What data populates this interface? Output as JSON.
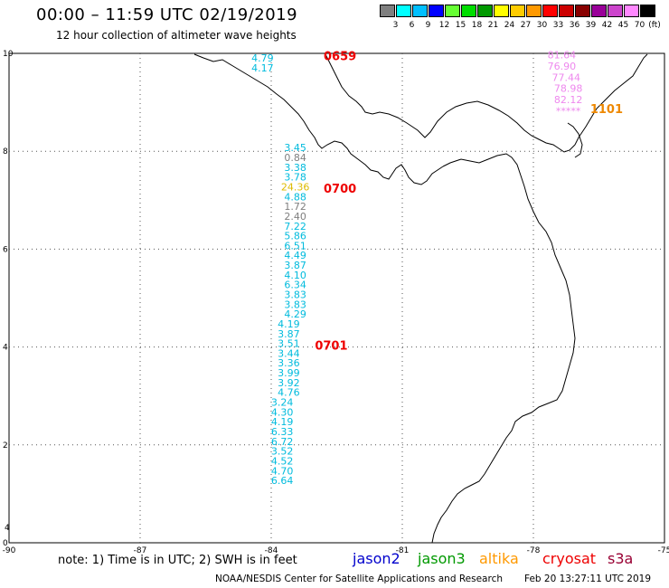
{
  "header": {
    "title": "00:00 – 11:59 UTC 02/19/2019",
    "subtitle": "12 hour collection of altimeter wave heights"
  },
  "scale": {
    "unit": "(ft)",
    "swatches": [
      {
        "color": "#7f7f7f",
        "label": "3"
      },
      {
        "color": "#00ffff",
        "label": "6"
      },
      {
        "color": "#00bfff",
        "label": "9"
      },
      {
        "color": "#0000ff",
        "label": "12"
      },
      {
        "color": "#66ff33",
        "label": "15"
      },
      {
        "color": "#00dd00",
        "label": "18"
      },
      {
        "color": "#009900",
        "label": "21"
      },
      {
        "color": "#ffff00",
        "label": "24"
      },
      {
        "color": "#ffcc00",
        "label": "27"
      },
      {
        "color": "#ff9900",
        "label": "30"
      },
      {
        "color": "#ff0000",
        "label": "33"
      },
      {
        "color": "#cc0000",
        "label": "36"
      },
      {
        "color": "#880000",
        "label": "39"
      },
      {
        "color": "#990099",
        "label": "42"
      },
      {
        "color": "#cc44cc",
        "label": "45"
      },
      {
        "color": "#ff88ff",
        "label": "70"
      },
      {
        "color": "#000000",
        "label": ""
      }
    ]
  },
  "map": {
    "lon_range": [
      -90,
      -75
    ],
    "lat_range": [
      0,
      10
    ],
    "x_ticks": [
      "-90",
      "-87",
      "-84",
      "-81",
      "-78",
      "-75"
    ],
    "y_ticks": [
      "0",
      "2",
      "4",
      "6",
      "8",
      "10"
    ],
    "y_ticks_minor": [
      "4"
    ],
    "grid": "dotted"
  },
  "observations": [
    {
      "lon": -84.2,
      "lat": 9.83,
      "value": "4.79",
      "color": "#00bbdd"
    },
    {
      "lon": -84.2,
      "lat": 9.63,
      "value": "4.17",
      "color": "#00bbdd"
    },
    {
      "lon": -83.45,
      "lat": 8.0,
      "value": "3.45",
      "color": "#00bbdd"
    },
    {
      "lon": -83.45,
      "lat": 7.8,
      "value": "0.84",
      "color": "#7f7f7f"
    },
    {
      "lon": -83.45,
      "lat": 7.6,
      "value": "3.38",
      "color": "#00bbdd"
    },
    {
      "lon": -83.45,
      "lat": 7.4,
      "value": "3.78",
      "color": "#00bbdd"
    },
    {
      "lon": -83.45,
      "lat": 7.2,
      "value": "24.36",
      "color": "#ddbb00"
    },
    {
      "lon": -83.45,
      "lat": 7.0,
      "value": "4.88",
      "color": "#00bbdd"
    },
    {
      "lon": -83.45,
      "lat": 6.8,
      "value": "1.72",
      "color": "#7f7f7f"
    },
    {
      "lon": -83.45,
      "lat": 6.6,
      "value": "2.40",
      "color": "#7f7f7f"
    },
    {
      "lon": -83.45,
      "lat": 6.4,
      "value": "7.22",
      "color": "#00bbdd"
    },
    {
      "lon": -83.45,
      "lat": 6.2,
      "value": "5.86",
      "color": "#00bbdd"
    },
    {
      "lon": -83.45,
      "lat": 6.0,
      "value": "6.51",
      "color": "#00bbdd"
    },
    {
      "lon": -83.45,
      "lat": 5.8,
      "value": "4.49",
      "color": "#00bbdd"
    },
    {
      "lon": -83.45,
      "lat": 5.6,
      "value": "3.87",
      "color": "#00bbdd"
    },
    {
      "lon": -83.45,
      "lat": 5.4,
      "value": "4.10",
      "color": "#00bbdd"
    },
    {
      "lon": -83.45,
      "lat": 5.2,
      "value": "6.34",
      "color": "#00bbdd"
    },
    {
      "lon": -83.45,
      "lat": 5.0,
      "value": "3.83",
      "color": "#00bbdd"
    },
    {
      "lon": -83.45,
      "lat": 4.8,
      "value": "3.83",
      "color": "#00bbdd"
    },
    {
      "lon": -83.45,
      "lat": 4.6,
      "value": "4.29",
      "color": "#00bbdd"
    },
    {
      "lon": -83.6,
      "lat": 4.4,
      "value": "4.19",
      "color": "#00bbdd"
    },
    {
      "lon": -83.6,
      "lat": 4.2,
      "value": "3.87",
      "color": "#00bbdd"
    },
    {
      "lon": -83.6,
      "lat": 4.0,
      "value": "3.51",
      "color": "#00bbdd"
    },
    {
      "lon": -83.6,
      "lat": 3.8,
      "value": "3.44",
      "color": "#00bbdd"
    },
    {
      "lon": -83.6,
      "lat": 3.6,
      "value": "3.36",
      "color": "#00bbdd"
    },
    {
      "lon": -83.6,
      "lat": 3.4,
      "value": "3.99",
      "color": "#00bbdd"
    },
    {
      "lon": -83.6,
      "lat": 3.2,
      "value": "3.92",
      "color": "#00bbdd"
    },
    {
      "lon": -83.6,
      "lat": 3.0,
      "value": "4.76",
      "color": "#00bbdd"
    },
    {
      "lon": -83.75,
      "lat": 2.8,
      "value": "3.24",
      "color": "#00bbdd"
    },
    {
      "lon": -83.75,
      "lat": 2.6,
      "value": "4.30",
      "color": "#00bbdd"
    },
    {
      "lon": -83.75,
      "lat": 2.4,
      "value": "4.19",
      "color": "#00bbdd"
    },
    {
      "lon": -83.75,
      "lat": 2.2,
      "value": "6.33",
      "color": "#00bbdd"
    },
    {
      "lon": -83.75,
      "lat": 2.0,
      "value": "6.72",
      "color": "#00bbdd"
    },
    {
      "lon": -83.75,
      "lat": 1.8,
      "value": "3.52",
      "color": "#00bbdd"
    },
    {
      "lon": -83.75,
      "lat": 1.6,
      "value": "4.52",
      "color": "#00bbdd"
    },
    {
      "lon": -83.75,
      "lat": 1.4,
      "value": "4.70",
      "color": "#00bbdd"
    },
    {
      "lon": -83.75,
      "lat": 1.2,
      "value": "6.64",
      "color": "#00bbdd"
    },
    {
      "lon": -77.35,
      "lat": 9.9,
      "value": "81.64",
      "color": "#ee88ee"
    },
    {
      "lon": -77.35,
      "lat": 9.67,
      "value": "76.90",
      "color": "#ee88ee"
    },
    {
      "lon": -77.25,
      "lat": 9.44,
      "value": "77.44",
      "color": "#ee88ee"
    },
    {
      "lon": -77.2,
      "lat": 9.21,
      "value": "78.98",
      "color": "#ee88ee"
    },
    {
      "lon": -77.2,
      "lat": 8.98,
      "value": "82.12",
      "color": "#ee88ee"
    },
    {
      "lon": -77.2,
      "lat": 8.75,
      "value": "*****",
      "color": "#ee88ee"
    }
  ],
  "time_labels": [
    {
      "lon": -82.8,
      "lat": 9.86,
      "text": "0659",
      "color": "#ee0000"
    },
    {
      "lon": -82.8,
      "lat": 7.15,
      "text": "0700",
      "color": "#ee0000"
    },
    {
      "lon": -83.0,
      "lat": 3.95,
      "text": "0701",
      "color": "#ee0000"
    },
    {
      "lon": -76.7,
      "lat": 8.78,
      "text": "1101",
      "color": "#ee8800"
    }
  ],
  "footer": {
    "note": "note:  1) Time is in UTC;  2) SWH is in feet",
    "missions": [
      {
        "name": "jason2",
        "color": "#0000cc"
      },
      {
        "name": "jason3",
        "color": "#009900"
      },
      {
        "name": "altika",
        "color": "#ff9900"
      },
      {
        "name": "cryosat",
        "color": "#ee0000"
      },
      {
        "name": "s3a",
        "color": "#990033"
      }
    ],
    "credit": "NOAA/NESDIS Center for Satellite Applications and Research",
    "timestamp": "Feb 20 13:27:11 UTC 2019"
  }
}
